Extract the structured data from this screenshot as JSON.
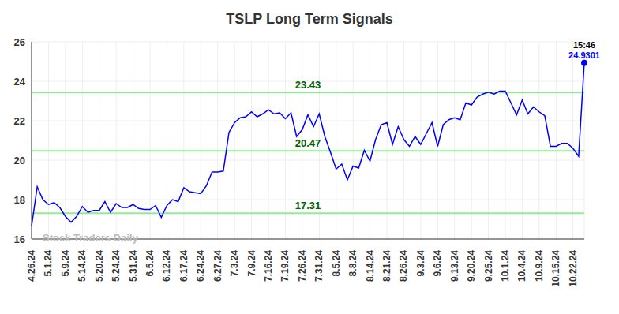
{
  "chart_data": {
    "type": "line",
    "title": "TSLP Long Term Signals",
    "x": [
      "4.26.24",
      null,
      null,
      "5.1.24",
      null,
      null,
      "5.9.24",
      null,
      null,
      "5.14.24",
      null,
      null,
      "5.20.24",
      null,
      null,
      "5.24.24",
      null,
      null,
      "5.31.24",
      null,
      null,
      "6.5.24",
      null,
      null,
      "6.12.24",
      null,
      null,
      "6.17.24",
      null,
      null,
      "6.24.24",
      null,
      null,
      "6.27.24",
      null,
      null,
      "7.3.24",
      null,
      null,
      "7.9.24",
      null,
      null,
      "7.16.24",
      null,
      null,
      "7.19.24",
      null,
      null,
      "7.26.24",
      null,
      null,
      "7.31.24",
      null,
      null,
      "8.5.24",
      null,
      null,
      "8.8.24",
      null,
      null,
      "8.14.24",
      null,
      null,
      "8.21.24",
      null,
      null,
      "8.26.24",
      null,
      null,
      "9.3.24",
      null,
      null,
      "9.6.24",
      null,
      null,
      "9.13.24",
      null,
      null,
      "9.20.24",
      null,
      null,
      "9.25.24",
      null,
      null,
      "10.1.24",
      null,
      null,
      "10.4.24",
      null,
      null,
      "10.9.24",
      null,
      null,
      "10.15.24",
      null,
      null,
      "10.22.24",
      null,
      null
    ],
    "values": [
      16.65,
      18.65,
      18.0,
      17.75,
      17.85,
      17.6,
      17.15,
      16.85,
      17.15,
      17.65,
      17.35,
      17.45,
      17.45,
      17.9,
      17.35,
      17.8,
      17.6,
      17.6,
      17.75,
      17.55,
      17.5,
      17.5,
      17.7,
      17.1,
      17.7,
      18.0,
      17.9,
      18.6,
      18.4,
      18.35,
      18.3,
      18.7,
      19.4,
      19.4,
      19.45,
      21.4,
      21.9,
      22.15,
      22.2,
      22.45,
      22.2,
      22.35,
      22.55,
      22.35,
      22.4,
      22.1,
      22.4,
      21.2,
      21.55,
      22.3,
      21.7,
      22.35,
      21.2,
      20.4,
      19.55,
      19.8,
      19.0,
      19.7,
      19.6,
      20.5,
      19.95,
      21.05,
      21.8,
      21.9,
      20.8,
      21.7,
      21.05,
      20.7,
      21.2,
      20.8,
      21.35,
      21.9,
      20.7,
      21.8,
      22.05,
      22.15,
      22.05,
      22.9,
      22.8,
      23.2,
      23.35,
      23.45,
      23.35,
      23.5,
      23.5,
      22.9,
      22.3,
      23.05,
      22.35,
      22.7,
      22.45,
      22.25,
      20.7,
      20.7,
      20.85,
      20.85,
      20.6,
      20.2,
      24.9301
    ],
    "color": "#0000ff",
    "ylim": [
      16,
      26
    ],
    "yticks": [
      16,
      18,
      20,
      22,
      24,
      26
    ],
    "grid": true,
    "reference_lines": [
      23.43,
      20.47,
      17.31
    ],
    "last_time": "15:46",
    "watermark": "Stock Traders Daily"
  }
}
